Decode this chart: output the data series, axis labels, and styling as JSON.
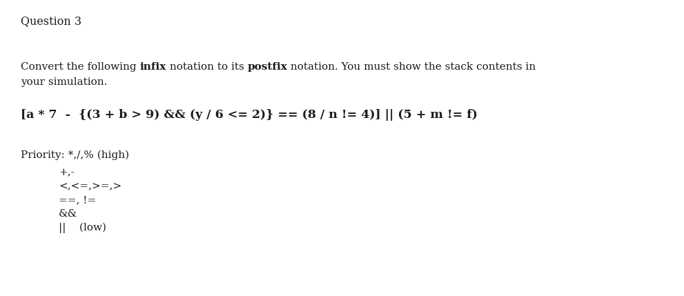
{
  "bg_color": "#ffffff",
  "text_color": "#1a1a1a",
  "title": "Question 3",
  "title_fontsize": 11.5,
  "title_fontweight": "normal",
  "para_fontsize": 11.0,
  "formula": "[a * 7  -  {(3 + b > 9) && (y / 6 <= 2)} == (8 / n != 4)] || (5 + m != f)",
  "formula_fontsize": 12.5,
  "priority_label": "Priority: *,/,% (high)",
  "priority_items": [
    "+,-",
    "<,<=,>=,>",
    "==, !=",
    "&&",
    "||    (low)"
  ],
  "priority_fontsize": 11.0
}
